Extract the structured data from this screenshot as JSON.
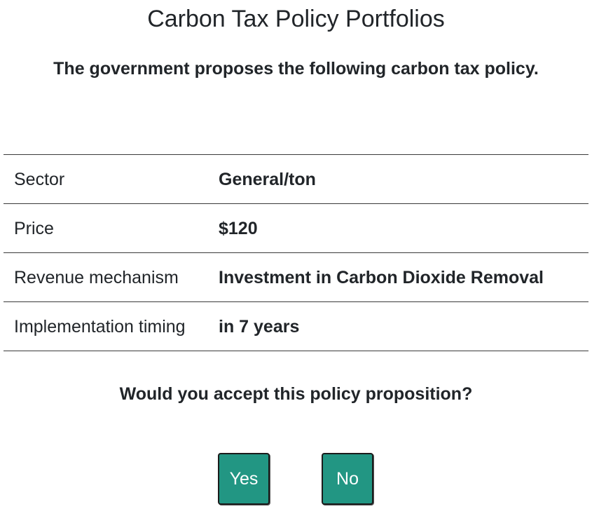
{
  "header": {
    "title": "Carbon Tax Policy Portfolios",
    "subtitle": "The government proposes the following carbon tax policy."
  },
  "policy": {
    "rows": [
      {
        "label": "Sector",
        "value": "General/ton"
      },
      {
        "label": "Price",
        "value": "$120"
      },
      {
        "label": "Revenue mechanism",
        "value": "Investment in Carbon Dioxide Removal"
      },
      {
        "label": "Implementation timing",
        "value": "in 7 years"
      }
    ]
  },
  "question": {
    "text": "Would you accept this policy proposition?"
  },
  "buttons": {
    "yes_label": "Yes",
    "no_label": "No",
    "color": "#229683"
  }
}
